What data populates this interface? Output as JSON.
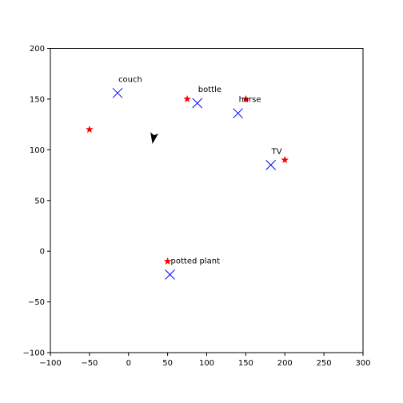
{
  "chart_data": {
    "type": "scatter",
    "xlim": [
      -100,
      300
    ],
    "ylim": [
      -100,
      200
    ],
    "xticks": [
      -100,
      -50,
      0,
      50,
      100,
      150,
      200,
      250,
      300
    ],
    "yticks": [
      -100,
      -50,
      0,
      50,
      100,
      150,
      200
    ],
    "grid": false,
    "agent": {
      "x": 32,
      "y": 112,
      "heading_deg": -100,
      "color": "#000000",
      "marker": "arrow"
    },
    "stars": {
      "color": "#ff0000",
      "marker": "star",
      "points": [
        {
          "x": -50,
          "y": 120
        },
        {
          "x": 75,
          "y": 150
        },
        {
          "x": 150,
          "y": 150
        },
        {
          "x": 200,
          "y": 90
        },
        {
          "x": 50,
          "y": -10
        }
      ]
    },
    "objects": {
      "color": "#0000ff",
      "marker": "x",
      "points": [
        {
          "label": "couch",
          "x": -14,
          "y": 156
        },
        {
          "label": "bottle",
          "x": 88,
          "y": 146
        },
        {
          "label": "horse",
          "x": 140,
          "y": 136
        },
        {
          "label": "TV",
          "x": 182,
          "y": 85
        },
        {
          "label": "potted plant",
          "x": 53,
          "y": -23
        }
      ]
    }
  }
}
